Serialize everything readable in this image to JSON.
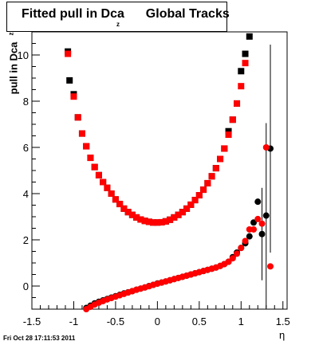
{
  "title": {
    "main": "Fitted pull in Dca",
    "sub": "z",
    "suffix": "Global Tracks"
  },
  "axes": {
    "ylabel": "pull in Dca",
    "ylabel_sub": "z",
    "xlabel": "η"
  },
  "footer": "Fri Oct 28 17:11:53 2011",
  "colors": {
    "series_black": "#000000",
    "series_red": "#ff0000"
  },
  "chart_data": {
    "type": "scatter",
    "title": "Fitted pull in Dca z Global Tracks",
    "xlabel": "η",
    "ylabel": "pull in Dca z",
    "xlim": [
      -1.5,
      1.55
    ],
    "ylim": [
      -1.0,
      11.0
    ],
    "xticks": [
      "-1.5",
      "-1",
      "-0.5",
      "0",
      "0.5",
      "1",
      "1.5"
    ],
    "yticks": [
      "0",
      "2",
      "4",
      "6",
      "8",
      "10"
    ],
    "grid": false,
    "series": [
      {
        "name": "",
        "color": "black",
        "marker": "square",
        "points": [
          [
            -1.07,
            10.15
          ],
          [
            -1.05,
            8.9
          ],
          [
            -1.0,
            8.3
          ],
          [
            -0.95,
            7.3
          ],
          [
            -0.9,
            6.6
          ],
          [
            -0.85,
            6.05
          ],
          [
            -0.8,
            5.55
          ],
          [
            -0.75,
            5.15
          ],
          [
            -0.7,
            4.8
          ],
          [
            -0.65,
            4.5
          ],
          [
            -0.6,
            4.25
          ],
          [
            -0.55,
            4.0
          ],
          [
            -0.5,
            3.75
          ],
          [
            -0.45,
            3.55
          ],
          [
            -0.4,
            3.35
          ],
          [
            -0.35,
            3.2
          ],
          [
            -0.3,
            3.08
          ],
          [
            -0.25,
            2.97
          ],
          [
            -0.2,
            2.88
          ],
          [
            -0.15,
            2.82
          ],
          [
            -0.1,
            2.78
          ],
          [
            -0.05,
            2.75
          ],
          [
            0.0,
            2.75
          ],
          [
            0.05,
            2.76
          ],
          [
            0.1,
            2.8
          ],
          [
            0.15,
            2.87
          ],
          [
            0.2,
            2.97
          ],
          [
            0.25,
            3.08
          ],
          [
            0.3,
            3.2
          ],
          [
            0.35,
            3.35
          ],
          [
            0.4,
            3.52
          ],
          [
            0.45,
            3.72
          ],
          [
            0.5,
            3.93
          ],
          [
            0.55,
            4.17
          ],
          [
            0.6,
            4.45
          ],
          [
            0.65,
            4.75
          ],
          [
            0.7,
            5.1
          ],
          [
            0.75,
            5.5
          ],
          [
            0.8,
            5.95
          ],
          [
            0.85,
            6.7
          ],
          [
            0.9,
            7.2
          ],
          [
            0.95,
            7.9
          ],
          [
            1.0,
            9.3
          ],
          [
            1.05,
            10.05
          ],
          [
            1.1,
            10.8
          ]
        ]
      },
      {
        "name": "",
        "color": "red",
        "marker": "square",
        "points": [
          [
            -1.07,
            10.05
          ],
          [
            -1.0,
            8.2
          ],
          [
            -0.95,
            7.3
          ],
          [
            -0.9,
            6.6
          ],
          [
            -0.85,
            6.05
          ],
          [
            -0.8,
            5.55
          ],
          [
            -0.75,
            5.15
          ],
          [
            -0.7,
            4.8
          ],
          [
            -0.65,
            4.5
          ],
          [
            -0.6,
            4.25
          ],
          [
            -0.55,
            4.0
          ],
          [
            -0.5,
            3.75
          ],
          [
            -0.45,
            3.55
          ],
          [
            -0.4,
            3.35
          ],
          [
            -0.35,
            3.2
          ],
          [
            -0.3,
            3.08
          ],
          [
            -0.25,
            2.97
          ],
          [
            -0.2,
            2.88
          ],
          [
            -0.15,
            2.82
          ],
          [
            -0.1,
            2.78
          ],
          [
            -0.05,
            2.75
          ],
          [
            0.0,
            2.75
          ],
          [
            0.05,
            2.76
          ],
          [
            0.1,
            2.8
          ],
          [
            0.15,
            2.87
          ],
          [
            0.2,
            2.97
          ],
          [
            0.25,
            3.08
          ],
          [
            0.3,
            3.2
          ],
          [
            0.35,
            3.35
          ],
          [
            0.4,
            3.52
          ],
          [
            0.45,
            3.72
          ],
          [
            0.5,
            3.93
          ],
          [
            0.55,
            4.17
          ],
          [
            0.6,
            4.45
          ],
          [
            0.65,
            4.75
          ],
          [
            0.7,
            5.1
          ],
          [
            0.75,
            5.5
          ],
          [
            0.8,
            5.95
          ],
          [
            0.85,
            6.55
          ],
          [
            0.9,
            7.2
          ],
          [
            0.95,
            7.9
          ],
          [
            1.0,
            8.65
          ],
          [
            1.05,
            9.65
          ]
        ]
      },
      {
        "name": "",
        "color": "black",
        "marker": "circle",
        "points": [
          [
            -0.85,
            -0.95
          ],
          [
            -0.8,
            -0.85
          ],
          [
            -0.75,
            -0.75
          ],
          [
            -0.7,
            -0.68
          ],
          [
            -0.65,
            -0.62
          ],
          [
            -0.6,
            -0.56
          ],
          [
            -0.55,
            -0.5
          ],
          [
            -0.5,
            -0.44
          ],
          [
            -0.45,
            -0.38
          ],
          [
            -0.4,
            -0.32
          ],
          [
            -0.35,
            -0.27
          ],
          [
            -0.3,
            -0.22
          ],
          [
            -0.25,
            -0.16
          ],
          [
            -0.2,
            -0.11
          ],
          [
            -0.15,
            -0.06
          ],
          [
            -0.1,
            0.0
          ],
          [
            -0.05,
            0.05
          ],
          [
            0.0,
            0.11
          ],
          [
            0.05,
            0.15
          ],
          [
            0.1,
            0.2
          ],
          [
            0.15,
            0.25
          ],
          [
            0.2,
            0.3
          ],
          [
            0.25,
            0.35
          ],
          [
            0.3,
            0.4
          ],
          [
            0.35,
            0.45
          ],
          [
            0.4,
            0.5
          ],
          [
            0.45,
            0.55
          ],
          [
            0.5,
            0.6
          ],
          [
            0.55,
            0.65
          ],
          [
            0.6,
            0.7
          ],
          [
            0.65,
            0.75
          ],
          [
            0.7,
            0.8
          ],
          [
            0.75,
            0.87
          ],
          [
            0.8,
            0.95
          ],
          [
            0.85,
            1.05
          ],
          [
            0.9,
            1.25
          ],
          [
            0.95,
            1.45
          ],
          [
            1.0,
            1.65
          ],
          [
            1.05,
            1.85
          ],
          [
            1.1,
            2.15
          ],
          [
            1.15,
            2.75
          ],
          [
            1.2,
            3.65
          ],
          [
            1.25,
            2.25
          ],
          [
            1.3,
            3.05
          ],
          [
            1.35,
            5.95
          ]
        ],
        "errors": [
          [
            1.25,
            2.25,
            2.0
          ],
          [
            1.3,
            3.05,
            4.0
          ],
          [
            1.35,
            5.95,
            4.5
          ]
        ]
      },
      {
        "name": "",
        "color": "red",
        "marker": "circle",
        "points": [
          [
            -0.85,
            -1.0
          ],
          [
            -0.8,
            -0.9
          ],
          [
            -0.75,
            -0.8
          ],
          [
            -0.7,
            -0.72
          ],
          [
            -0.65,
            -0.65
          ],
          [
            -0.6,
            -0.58
          ],
          [
            -0.55,
            -0.52
          ],
          [
            -0.5,
            -0.46
          ],
          [
            -0.45,
            -0.4
          ],
          [
            -0.4,
            -0.34
          ],
          [
            -0.35,
            -0.28
          ],
          [
            -0.3,
            -0.22
          ],
          [
            -0.25,
            -0.16
          ],
          [
            -0.2,
            -0.11
          ],
          [
            -0.15,
            -0.06
          ],
          [
            -0.1,
            -0.01
          ],
          [
            -0.05,
            0.05
          ],
          [
            0.0,
            0.1
          ],
          [
            0.05,
            0.15
          ],
          [
            0.1,
            0.2
          ],
          [
            0.15,
            0.25
          ],
          [
            0.2,
            0.3
          ],
          [
            0.25,
            0.35
          ],
          [
            0.3,
            0.4
          ],
          [
            0.35,
            0.45
          ],
          [
            0.4,
            0.5
          ],
          [
            0.45,
            0.55
          ],
          [
            0.5,
            0.6
          ],
          [
            0.55,
            0.65
          ],
          [
            0.6,
            0.7
          ],
          [
            0.65,
            0.75
          ],
          [
            0.7,
            0.8
          ],
          [
            0.75,
            0.87
          ],
          [
            0.8,
            0.95
          ],
          [
            0.85,
            1.05
          ],
          [
            0.9,
            1.2
          ],
          [
            0.95,
            1.4
          ],
          [
            1.0,
            1.65
          ],
          [
            1.05,
            1.95
          ],
          [
            1.1,
            2.45
          ],
          [
            1.15,
            2.45
          ],
          [
            1.2,
            2.9
          ],
          [
            1.25,
            2.7
          ],
          [
            1.3,
            6.0
          ],
          [
            1.35,
            0.85
          ]
        ]
      }
    ]
  }
}
